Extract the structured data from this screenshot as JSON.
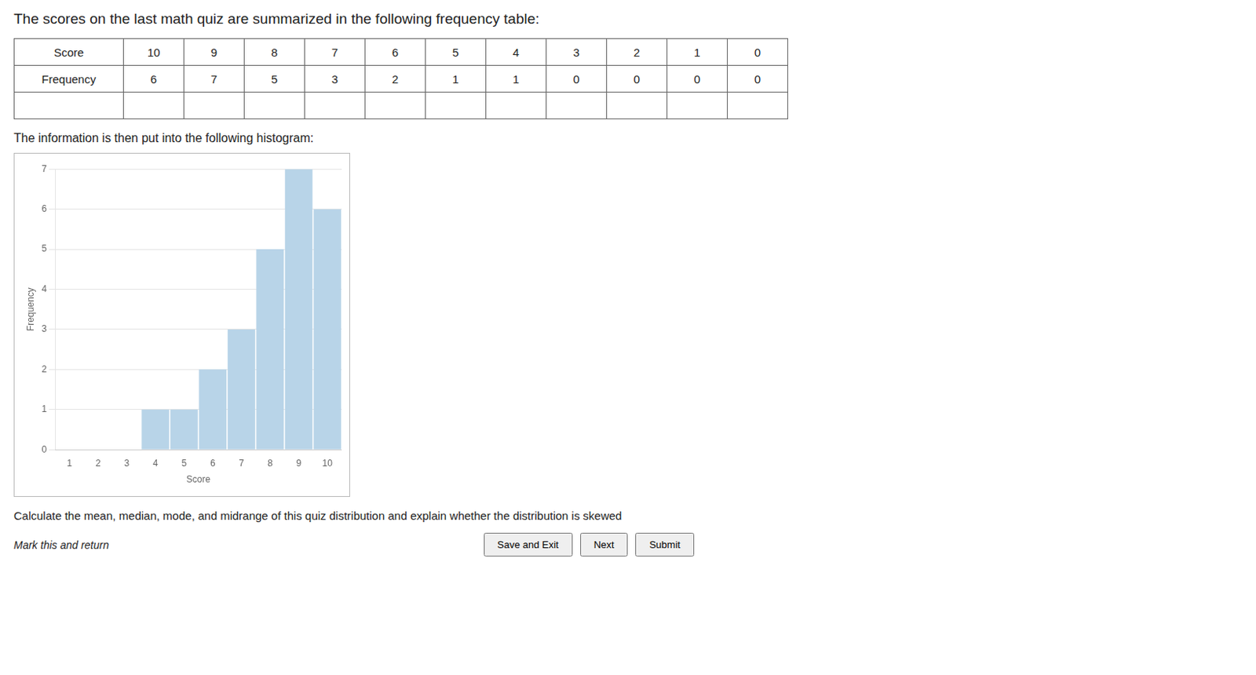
{
  "title": "The scores on the last math quiz are summarized in the following frequency table:",
  "table": {
    "row_labels": [
      "Score",
      "Frequency"
    ],
    "scores": [
      10,
      9,
      8,
      7,
      6,
      5,
      4,
      3,
      2,
      1,
      0
    ],
    "frequencies": [
      6,
      7,
      5,
      3,
      2,
      1,
      1,
      0,
      0,
      0,
      0
    ]
  },
  "subtitle": "The information is then put into the following histogram:",
  "chart_data": {
    "type": "bar",
    "x": [
      1,
      2,
      3,
      4,
      5,
      6,
      7,
      8,
      9,
      10
    ],
    "values": [
      0,
      0,
      0,
      1,
      1,
      2,
      3,
      5,
      7,
      6
    ],
    "xlabel": "Score",
    "ylabel": "Frequency",
    "color": "#b8d4e8",
    "xlim": [
      0.5,
      10.5
    ],
    "xticks": [
      1,
      2,
      3,
      4,
      5,
      6,
      7,
      8,
      9,
      10
    ],
    "ylim": [
      0,
      7
    ],
    "yticks": [
      0,
      1,
      2,
      3,
      4,
      5,
      6,
      7
    ],
    "grid": "y"
  },
  "footer": "Calculate the mean, median, mode, and midrange of this quiz distribution and explain whether the distribution is skewed",
  "link": "Mark this and return",
  "buttons": [
    "Save and Exit",
    "Next",
    "Submit"
  ]
}
